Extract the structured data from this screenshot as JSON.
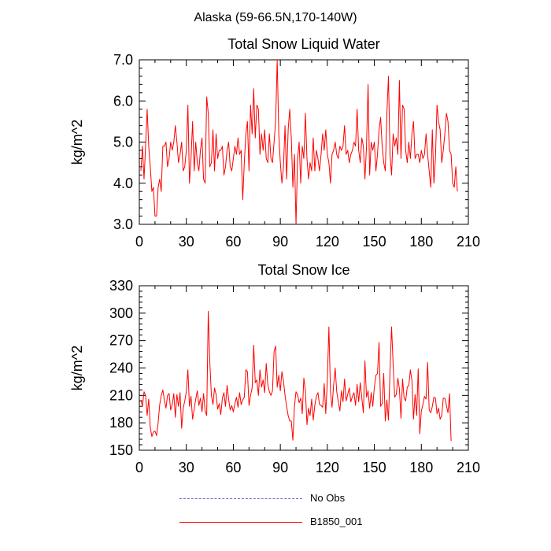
{
  "page_title": "Alaska (59-66.5N,170-140W)",
  "colors": {
    "series": "#ff0000",
    "obs": "#6b6bd6",
    "axis": "#000000"
  },
  "legend": [
    {
      "label": "No Obs",
      "style": "dashed",
      "color": "#6b6bd6"
    },
    {
      "label": "B1850_001",
      "style": "solid",
      "color": "#ff0000"
    }
  ],
  "chart_data": [
    {
      "type": "line",
      "title": "Total Snow Liquid Water",
      "xlabel": "",
      "ylabel": "kg/m^2",
      "xlim": [
        0,
        210
      ],
      "ylim": [
        3.0,
        7.0
      ],
      "xticks": [
        0,
        30,
        60,
        90,
        120,
        150,
        180,
        210
      ],
      "yticks": [
        3.0,
        4.0,
        5.0,
        6.0,
        7.0
      ],
      "ytick_labels": [
        "3.0",
        "4.0",
        "5.0",
        "6.0",
        "7.0"
      ],
      "grid": false,
      "series": [
        {
          "name": "B1850_001",
          "x_start": 1,
          "x_step": 1,
          "values": [
            4.3,
            4.9,
            4.1,
            4.9,
            5.8,
            4.9,
            4.4,
            3.8,
            3.9,
            3.2,
            3.2,
            3.9,
            4.1,
            3.8,
            4.9,
            4.9,
            5.0,
            4.4,
            4.6,
            5.0,
            4.8,
            5.0,
            5.4,
            5.0,
            4.5,
            4.7,
            5.0,
            4.3,
            4.4,
            4.8,
            5.9,
            4.0,
            4.6,
            5.5,
            4.3,
            5.0,
            4.5,
            4.3,
            4.8,
            5.1,
            4.1,
            4.0,
            6.1,
            5.7,
            4.4,
            4.5,
            5.3,
            4.3,
            5.2,
            4.6,
            4.8,
            4.8,
            4.9,
            4.2,
            4.4,
            4.8,
            5.0,
            4.4,
            4.3,
            4.6,
            4.9,
            4.7,
            5.1,
            4.7,
            4.8,
            3.6,
            4.5,
            5.2,
            5.5,
            4.3,
            5.9,
            5.2,
            6.3,
            5.1,
            5.9,
            5.8,
            4.7,
            5.2,
            4.8,
            5.3,
            4.6,
            4.5,
            5.2,
            4.6,
            4.5,
            5.0,
            5.5,
            7.0,
            5.2,
            4.5,
            4.0,
            4.4,
            5.4,
            4.1,
            5.3,
            5.8,
            5.1,
            3.9,
            4.7,
            3.0,
            4.6,
            5.0,
            4.0,
            4.9,
            4.6,
            5.7,
            4.6,
            4.1,
            4.5,
            4.3,
            5.1,
            4.3,
            4.8,
            4.6,
            4.3,
            4.7,
            5.2,
            4.8,
            5.3,
            4.7,
            4.5,
            4.0,
            4.7,
            4.8,
            5.0,
            4.7,
            4.6,
            4.9,
            4.8,
            4.9,
            5.4,
            4.7,
            4.8,
            4.5,
            4.7,
            4.8,
            5.0,
            4.9,
            5.8,
            4.8,
            4.5,
            5.1,
            4.9,
            4.1,
            4.9,
            6.4,
            4.2,
            5.0,
            4.8,
            5.0,
            4.3,
            4.7,
            5.3,
            5.6,
            4.9,
            4.5,
            4.3,
            5.7,
            6.6,
            4.7,
            4.2,
            5.2,
            4.9,
            5.1,
            4.7,
            6.5,
            4.6,
            5.9,
            5.8,
            4.8,
            4.5,
            5.0,
            4.6,
            5.2,
            5.5,
            4.6,
            4.7,
            4.7,
            4.5,
            4.8,
            4.6,
            4.7,
            5.2,
            4.7,
            4.3,
            3.9,
            5.3,
            4.0,
            4.6,
            5.9,
            5.5,
            5.3,
            4.5,
            4.8,
            5.2,
            5.7,
            5.5,
            4.8,
            4.7,
            4.0,
            3.9,
            4.4,
            3.8
          ]
        }
      ]
    },
    {
      "type": "line",
      "title": "Total Snow Ice",
      "xlabel": "",
      "ylabel": "kg/m^2",
      "xlim": [
        0,
        210
      ],
      "ylim": [
        150,
        330
      ],
      "xticks": [
        0,
        30,
        60,
        90,
        120,
        150,
        180,
        210
      ],
      "yticks": [
        150,
        180,
        210,
        240,
        270,
        300,
        330
      ],
      "ytick_labels": [
        "150",
        "180",
        "210",
        "240",
        "270",
        "300",
        "330"
      ],
      "grid": false,
      "series": [
        {
          "name": "B1850_001",
          "x_start": 1,
          "x_step": 1,
          "values": [
            205,
            198,
            214,
            210,
            188,
            206,
            175,
            165,
            170,
            171,
            166,
            180,
            200,
            210,
            216,
            205,
            196,
            210,
            212,
            194,
            200,
            212,
            186,
            211,
            198,
            213,
            174,
            196,
            204,
            214,
            238,
            198,
            209,
            184,
            195,
            206,
            215,
            199,
            207,
            192,
            212,
            193,
            188,
            302,
            246,
            210,
            200,
            218,
            211,
            195,
            201,
            189,
            207,
            213,
            198,
            221,
            206,
            194,
            199,
            192,
            201,
            208,
            197,
            213,
            200,
            205,
            208,
            238,
            236,
            199,
            210,
            218,
            265,
            224,
            227,
            210,
            238,
            219,
            227,
            213,
            245,
            222,
            214,
            210,
            215,
            258,
            264,
            219,
            232,
            215,
            236,
            226,
            210,
            198,
            188,
            182,
            182,
            161,
            198,
            214,
            211,
            202,
            207,
            190,
            229,
            215,
            178,
            196,
            188,
            206,
            183,
            199,
            209,
            213,
            200,
            199,
            197,
            223,
            190,
            227,
            285,
            214,
            197,
            221,
            240,
            214,
            203,
            193,
            215,
            203,
            228,
            204,
            211,
            218,
            203,
            209,
            213,
            199,
            222,
            203,
            224,
            207,
            191,
            248,
            208,
            215,
            196,
            213,
            198,
            219,
            232,
            234,
            268,
            198,
            201,
            234,
            182,
            205,
            183,
            237,
            285,
            244,
            208,
            211,
            229,
            217,
            185,
            228,
            207,
            204,
            219,
            221,
            238,
            226,
            184,
            211,
            188,
            239,
            168,
            193,
            200,
            209,
            206,
            246,
            194,
            191,
            198,
            208,
            207,
            190,
            196,
            184,
            188,
            207,
            207,
            199,
            191,
            212,
            160
          ]
        }
      ]
    }
  ]
}
